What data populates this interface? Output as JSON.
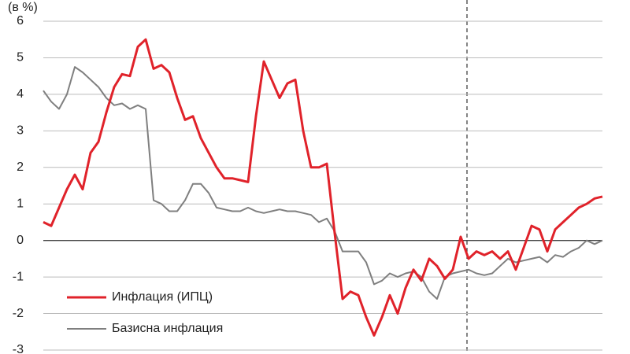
{
  "chart_data": {
    "type": "line",
    "y_label": "(в %)",
    "categories": [
      null,
      null,
      null,
      null,
      null,
      null,
      null,
      null,
      null,
      null,
      null,
      null,
      null,
      null,
      null,
      null,
      null,
      null,
      null,
      null,
      null,
      null,
      null,
      null,
      null,
      null,
      null,
      null,
      null,
      null,
      null,
      null,
      null,
      null,
      null,
      null,
      null,
      null,
      null,
      null,
      null,
      null,
      null,
      null,
      null,
      null,
      null,
      null,
      null,
      null,
      null,
      null,
      null,
      null,
      null,
      null,
      null,
      null,
      null,
      null,
      null,
      null,
      null,
      null,
      null,
      null,
      null,
      null,
      null,
      null,
      null,
      null
    ],
    "series": [
      {
        "name": "Инфлация (ИПЦ)",
        "color": "#e0222a",
        "values": [
          0.5,
          0.4,
          0.9,
          1.4,
          1.8,
          1.4,
          2.4,
          2.7,
          3.5,
          4.2,
          4.55,
          4.5,
          5.3,
          5.5,
          4.7,
          4.8,
          4.6,
          3.9,
          3.3,
          3.4,
          2.8,
          2.4,
          2.0,
          1.7,
          1.7,
          1.65,
          1.6,
          3.4,
          4.9,
          4.4,
          3.9,
          4.3,
          4.4,
          3.0,
          2.0,
          2.0,
          2.1,
          0.2,
          -1.6,
          -1.4,
          -1.5,
          -2.1,
          -2.6,
          -2.1,
          -1.5,
          -2.0,
          -1.3,
          -0.8,
          -1.1,
          -0.5,
          -0.7,
          -1.05,
          -0.8,
          0.1,
          -0.5,
          -0.3,
          -0.4,
          -0.3,
          -0.5,
          -0.3,
          -0.8,
          -0.2,
          0.4,
          0.3,
          -0.3,
          0.3,
          0.5,
          0.7,
          0.9,
          1.0,
          1.15,
          1.2
        ]
      },
      {
        "name": "Базисна инфлация",
        "color": "#7f7f7f",
        "values": [
          4.1,
          3.8,
          3.6,
          4.0,
          4.75,
          4.6,
          4.4,
          4.2,
          3.9,
          3.7,
          3.75,
          3.6,
          3.7,
          3.6,
          1.1,
          1.0,
          0.8,
          0.8,
          1.1,
          1.55,
          1.55,
          1.3,
          0.9,
          0.85,
          0.8,
          0.8,
          0.9,
          0.8,
          0.75,
          0.8,
          0.85,
          0.8,
          0.8,
          0.75,
          0.7,
          0.5,
          0.6,
          0.25,
          -0.3,
          -0.3,
          -0.3,
          -0.6,
          -1.2,
          -1.1,
          -0.9,
          -1.0,
          -0.9,
          -0.85,
          -1.0,
          -1.4,
          -1.6,
          -1.0,
          -0.9,
          -0.85,
          -0.8,
          -0.9,
          -0.95,
          -0.9,
          -0.7,
          -0.5,
          -0.6,
          -0.55,
          -0.5,
          -0.45,
          -0.6,
          -0.4,
          -0.45,
          -0.3,
          -0.2,
          0.0,
          -0.1,
          0.0
        ]
      }
    ],
    "ylim": [
      -3,
      6
    ],
    "yticks": [
      -3,
      -2,
      -1,
      0,
      1,
      2,
      3,
      4,
      5,
      6
    ],
    "grid": true
  }
}
